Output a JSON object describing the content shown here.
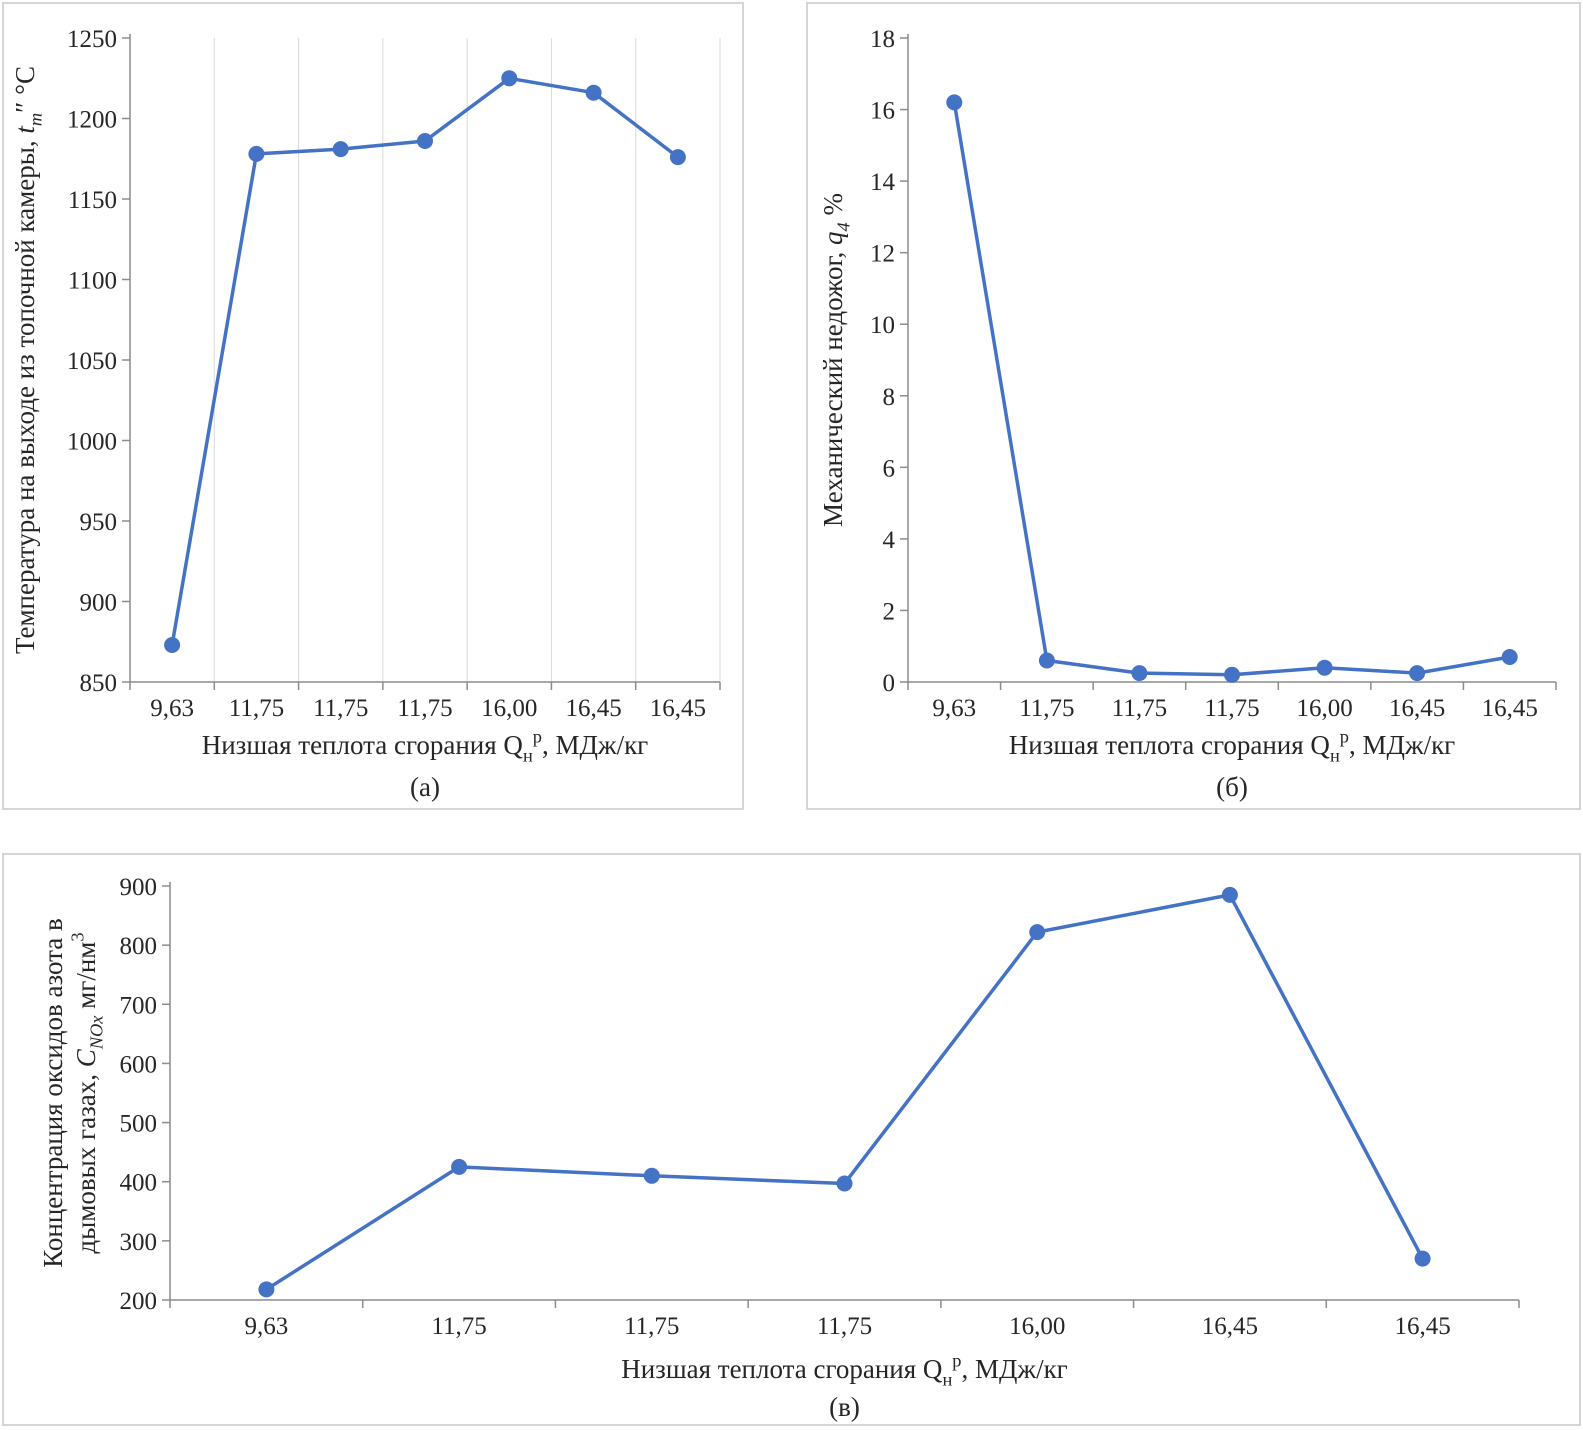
{
  "style": {
    "line_color": "#4472C4",
    "grid_color": "#D9D9D9",
    "axis_color": "#8C8C8C",
    "text_color": "#262626",
    "panel_border_color": "#D5D5D5"
  },
  "chart_data": [
    {
      "id": "a",
      "type": "line",
      "caption": "(а)",
      "categories": [
        "9,63",
        "11,75",
        "11,75",
        "11,75",
        "16,00",
        "16,45",
        "16,45"
      ],
      "values": [
        873,
        1178,
        1181,
        1186,
        1225,
        1216,
        1176
      ],
      "ylim": [
        850,
        1250
      ],
      "ytick_step": 50,
      "grid": "vertical",
      "legend": "none",
      "xlabel_parts": [
        {
          "t": "Низшая теплота сгорания Q"
        },
        {
          "t": "н",
          "pos": "sub"
        },
        {
          "t": "р",
          "pos": "sup"
        },
        {
          "t": ", МДж/кг"
        }
      ],
      "ylabel_lines": [
        [
          {
            "t": "Температура на выходе из топочной камеры, "
          },
          {
            "t": "t",
            "style": "italic"
          },
          {
            "t": "т",
            "pos": "sub",
            "style": "italic"
          },
          {
            "t": "″ °С"
          }
        ]
      ]
    },
    {
      "id": "b",
      "type": "line",
      "caption": "(б)",
      "categories": [
        "9,63",
        "11,75",
        "11,75",
        "11,75",
        "16,00",
        "16,45",
        "16,45"
      ],
      "values": [
        16.2,
        0.6,
        0.25,
        0.2,
        0.4,
        0.25,
        0.7
      ],
      "ylim": [
        0,
        18
      ],
      "ytick_step": 2,
      "grid": "none",
      "legend": "none",
      "xlabel_parts": [
        {
          "t": "Низшая теплота сгорания Q"
        },
        {
          "t": "н",
          "pos": "sub"
        },
        {
          "t": "р",
          "pos": "sup"
        },
        {
          "t": ", МДж/кг"
        }
      ],
      "ylabel_lines": [
        [
          {
            "t": "Механический недожог, "
          },
          {
            "t": "q",
            "style": "italic"
          },
          {
            "t": "4",
            "pos": "sub",
            "style": "italic"
          },
          {
            "t": " %"
          }
        ]
      ]
    },
    {
      "id": "v",
      "type": "line",
      "caption": "(в)",
      "categories": [
        "9,63",
        "11,75",
        "11,75",
        "11,75",
        "16,00",
        "16,45",
        "16,45"
      ],
      "values": [
        218,
        425,
        410,
        397,
        822,
        885,
        270
      ],
      "ylim": [
        200,
        900
      ],
      "ytick_step": 100,
      "grid": "none",
      "legend": "none",
      "xlabel_parts": [
        {
          "t": "Низшая теплота сгорания Q"
        },
        {
          "t": "н",
          "pos": "sub"
        },
        {
          "t": "р",
          "pos": "sup"
        },
        {
          "t": ", МДж/кг"
        }
      ],
      "ylabel_lines": [
        [
          {
            "t": "Концентрация  оксидов азота в"
          }
        ],
        [
          {
            "t": "дымовых газах, "
          },
          {
            "t": "C",
            "style": "italic"
          },
          {
            "t": "NOx",
            "pos": "sub",
            "style": "italic"
          },
          {
            "t": " мг/нм"
          },
          {
            "t": "3",
            "pos": "sup"
          }
        ]
      ]
    }
  ]
}
